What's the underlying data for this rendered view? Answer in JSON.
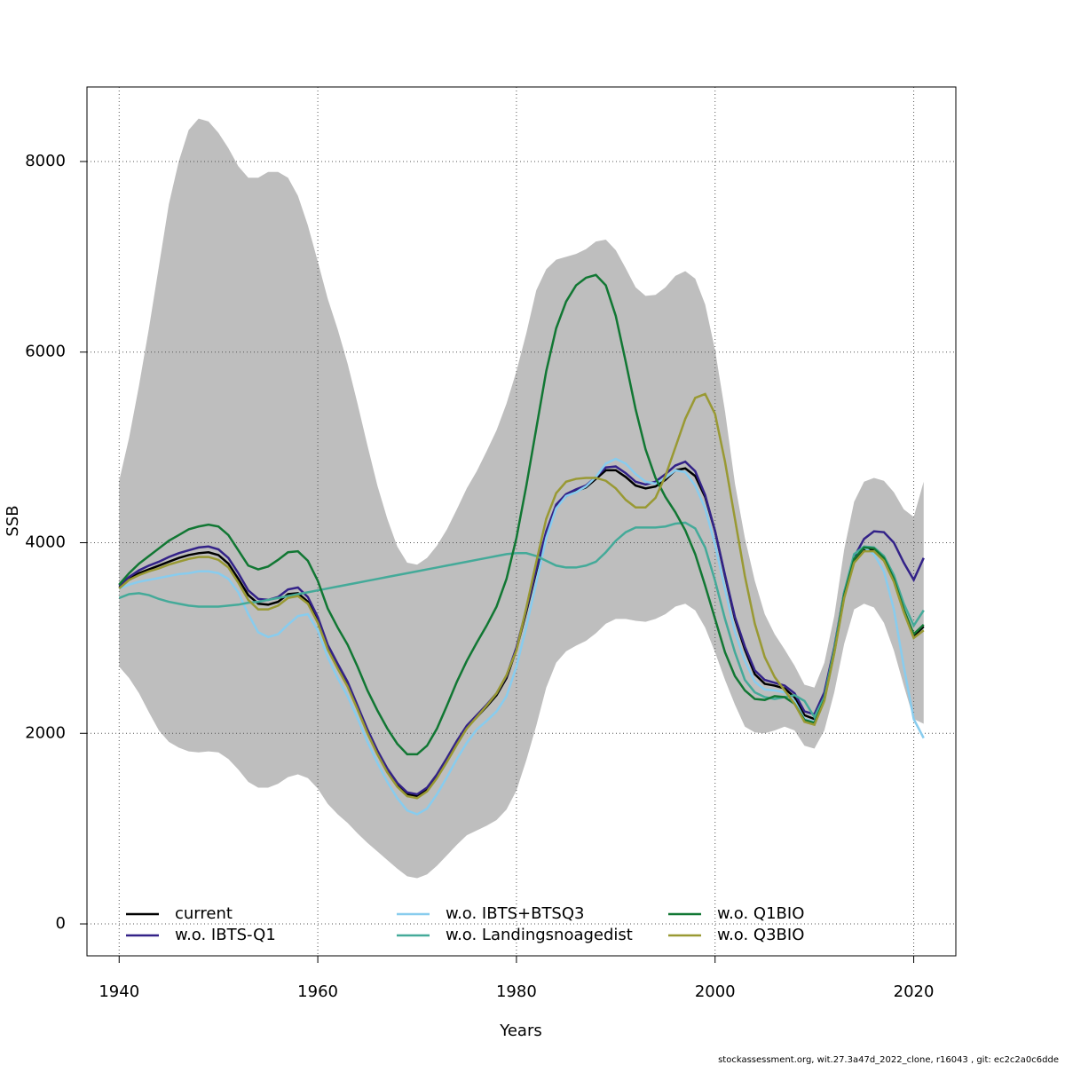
{
  "chart_data": {
    "type": "line",
    "xlabel": "Years",
    "ylabel": "SSB",
    "footer": "stockassessment.org, wit.27.3a47d_2022_clone, r16043 , git: ec2c2a0c6dde",
    "x": [
      1940,
      1941,
      1942,
      1943,
      1944,
      1945,
      1946,
      1947,
      1948,
      1949,
      1950,
      1951,
      1952,
      1953,
      1954,
      1955,
      1956,
      1957,
      1958,
      1959,
      1960,
      1961,
      1962,
      1963,
      1964,
      1965,
      1966,
      1967,
      1968,
      1969,
      1970,
      1971,
      1972,
      1973,
      1974,
      1975,
      1976,
      1977,
      1978,
      1979,
      1980,
      1981,
      1982,
      1983,
      1984,
      1985,
      1986,
      1987,
      1988,
      1989,
      1990,
      1991,
      1992,
      1993,
      1994,
      1995,
      1996,
      1997,
      1998,
      1999,
      2000,
      2001,
      2002,
      2003,
      2004,
      2005,
      2006,
      2007,
      2008,
      2009,
      2010,
      2011,
      2012,
      2013,
      2014,
      2015,
      2016,
      2017,
      2018,
      2019,
      2020,
      2021
    ],
    "band": {
      "color": "#bebebe",
      "upper": [
        4650,
        5100,
        5650,
        6250,
        6900,
        7550,
        8000,
        8330,
        8450,
        8420,
        8300,
        8140,
        7950,
        7830,
        7830,
        7890,
        7890,
        7830,
        7640,
        7330,
        6950,
        6560,
        6240,
        5880,
        5460,
        5020,
        4600,
        4250,
        3960,
        3790,
        3770,
        3840,
        3970,
        4140,
        4350,
        4570,
        4750,
        4960,
        5180,
        5460,
        5800,
        6200,
        6650,
        6870,
        6970,
        7000,
        7030,
        7080,
        7160,
        7180,
        7070,
        6880,
        6680,
        6590,
        6600,
        6680,
        6800,
        6850,
        6770,
        6500,
        6020,
        5380,
        4620,
        4050,
        3600,
        3250,
        3040,
        2880,
        2710,
        2510,
        2480,
        2740,
        3230,
        3930,
        4430,
        4640,
        4680,
        4650,
        4530,
        4350,
        4270,
        4640
      ],
      "lower": [
        2700,
        2580,
        2420,
        2220,
        2030,
        1910,
        1850,
        1810,
        1800,
        1810,
        1800,
        1730,
        1620,
        1490,
        1430,
        1430,
        1470,
        1540,
        1570,
        1530,
        1420,
        1260,
        1150,
        1060,
        950,
        850,
        760,
        670,
        580,
        500,
        480,
        520,
        610,
        720,
        830,
        930,
        980,
        1030,
        1090,
        1200,
        1400,
        1720,
        2080,
        2480,
        2740,
        2860,
        2920,
        2970,
        3050,
        3150,
        3200,
        3200,
        3180,
        3170,
        3200,
        3250,
        3330,
        3360,
        3290,
        3110,
        2850,
        2560,
        2300,
        2070,
        2010,
        2000,
        2030,
        2070,
        2030,
        1870,
        1840,
        2030,
        2430,
        2940,
        3300,
        3360,
        3320,
        3160,
        2870,
        2500,
        2150,
        2100
      ]
    },
    "series": [
      {
        "name": "current",
        "color": "#000000",
        "values": [
          3530,
          3620,
          3680,
          3720,
          3760,
          3800,
          3840,
          3870,
          3890,
          3900,
          3870,
          3780,
          3620,
          3450,
          3360,
          3350,
          3380,
          3460,
          3470,
          3380,
          3180,
          2900,
          2700,
          2510,
          2270,
          2020,
          1800,
          1610,
          1460,
          1360,
          1340,
          1410,
          1550,
          1720,
          1900,
          2060,
          2170,
          2280,
          2400,
          2580,
          2880,
          3280,
          3700,
          4100,
          4380,
          4490,
          4540,
          4580,
          4670,
          4760,
          4760,
          4690,
          4600,
          4570,
          4590,
          4660,
          4760,
          4780,
          4700,
          4480,
          4120,
          3650,
          3200,
          2880,
          2620,
          2520,
          2500,
          2470,
          2380,
          2190,
          2150,
          2380,
          2850,
          3450,
          3820,
          3930,
          3930,
          3830,
          3610,
          3280,
          3020,
          3120
        ]
      },
      {
        "name": "w.o. IBTS-Q1",
        "color": "#332288",
        "values": [
          3550,
          3640,
          3710,
          3760,
          3800,
          3850,
          3890,
          3920,
          3950,
          3960,
          3930,
          3840,
          3680,
          3500,
          3410,
          3400,
          3430,
          3510,
          3530,
          3430,
          3220,
          2930,
          2730,
          2540,
          2290,
          2040,
          1820,
          1630,
          1480,
          1380,
          1360,
          1430,
          1570,
          1740,
          1920,
          2080,
          2190,
          2300,
          2420,
          2600,
          2900,
          3300,
          3720,
          4120,
          4400,
          4510,
          4560,
          4600,
          4690,
          4790,
          4800,
          4730,
          4640,
          4610,
          4640,
          4720,
          4810,
          4850,
          4750,
          4500,
          4120,
          3660,
          3220,
          2910,
          2660,
          2560,
          2530,
          2500,
          2420,
          2230,
          2200,
          2430,
          2900,
          3480,
          3850,
          4040,
          4120,
          4110,
          4000,
          3790,
          3610,
          3840
        ]
      },
      {
        "name": "w.o. IBTS+BTSQ3",
        "color": "#88ccee",
        "values": [
          3520,
          3560,
          3590,
          3610,
          3630,
          3650,
          3670,
          3680,
          3700,
          3700,
          3680,
          3620,
          3480,
          3250,
          3060,
          3010,
          3040,
          3140,
          3230,
          3250,
          3080,
          2800,
          2580,
          2390,
          2160,
          1910,
          1690,
          1490,
          1320,
          1190,
          1150,
          1210,
          1360,
          1540,
          1730,
          1900,
          2040,
          2130,
          2230,
          2390,
          2700,
          3120,
          3580,
          4050,
          4360,
          4490,
          4530,
          4590,
          4690,
          4830,
          4880,
          4830,
          4720,
          4640,
          4620,
          4680,
          4760,
          4740,
          4600,
          4360,
          3980,
          3510,
          3060,
          2760,
          2540,
          2460,
          2450,
          2430,
          2340,
          2150,
          2120,
          2360,
          2840,
          3450,
          3880,
          3950,
          3880,
          3700,
          3300,
          2700,
          2150,
          1950
        ]
      },
      {
        "name": "w.o. Landingsnoagedist",
        "color": "#44aa99",
        "values": [
          3420,
          3460,
          3470,
          3450,
          3410,
          3380,
          3360,
          3340,
          3330,
          3330,
          3330,
          3340,
          3350,
          3370,
          3380,
          3400,
          3420,
          3440,
          3460,
          3480,
          3500,
          3520,
          3540,
          3560,
          3580,
          3600,
          3620,
          3640,
          3660,
          3680,
          3700,
          3720,
          3740,
          3760,
          3780,
          3800,
          3820,
          3840,
          3860,
          3880,
          3890,
          3890,
          3860,
          3810,
          3760,
          3740,
          3740,
          3760,
          3800,
          3900,
          4020,
          4110,
          4160,
          4160,
          4160,
          4170,
          4200,
          4210,
          4150,
          3950,
          3600,
          3200,
          2850,
          2560,
          2430,
          2380,
          2360,
          2380,
          2400,
          2340,
          2170,
          2380,
          2880,
          3480,
          3880,
          3960,
          3950,
          3860,
          3660,
          3360,
          3130,
          3290
        ]
      },
      {
        "name": "w.o. Q1BIO",
        "color": "#117733",
        "values": [
          3560,
          3680,
          3780,
          3860,
          3940,
          4020,
          4080,
          4140,
          4170,
          4190,
          4170,
          4080,
          3920,
          3760,
          3720,
          3750,
          3820,
          3900,
          3910,
          3810,
          3600,
          3310,
          3110,
          2930,
          2700,
          2450,
          2240,
          2050,
          1890,
          1780,
          1780,
          1870,
          2050,
          2290,
          2540,
          2760,
          2950,
          3130,
          3330,
          3620,
          4050,
          4600,
          5200,
          5800,
          6250,
          6530,
          6700,
          6780,
          6810,
          6700,
          6380,
          5900,
          5400,
          4980,
          4680,
          4480,
          4320,
          4130,
          3880,
          3550,
          3200,
          2850,
          2600,
          2450,
          2360,
          2350,
          2390,
          2380,
          2310,
          2140,
          2110,
          2350,
          2850,
          3450,
          3830,
          3950,
          3940,
          3840,
          3620,
          3300,
          3040,
          3140
        ]
      },
      {
        "name": "w.o. Q3BIO",
        "color": "#999933",
        "values": [
          3520,
          3610,
          3660,
          3700,
          3730,
          3770,
          3800,
          3830,
          3850,
          3850,
          3820,
          3740,
          3580,
          3400,
          3300,
          3300,
          3340,
          3420,
          3440,
          3360,
          3160,
          2880,
          2680,
          2490,
          2250,
          2000,
          1780,
          1590,
          1440,
          1340,
          1320,
          1390,
          1530,
          1700,
          1880,
          2050,
          2170,
          2290,
          2420,
          2610,
          2870,
          3320,
          3800,
          4250,
          4520,
          4640,
          4670,
          4680,
          4680,
          4650,
          4570,
          4450,
          4370,
          4370,
          4470,
          4700,
          5000,
          5300,
          5520,
          5560,
          5350,
          4850,
          4250,
          3650,
          3150,
          2800,
          2590,
          2450,
          2310,
          2120,
          2090,
          2340,
          2840,
          3420,
          3790,
          3910,
          3910,
          3810,
          3590,
          3270,
          3000,
          3080
        ]
      }
    ],
    "xlim": [
      1936.76,
      2024.24
    ],
    "ylim": [
      -335,
      8782
    ],
    "xticks": [
      1940,
      1960,
      1980,
      2000,
      2020
    ],
    "yticks": [
      0,
      2000,
      4000,
      6000,
      8000
    ],
    "grid": true,
    "legend": "bottom"
  }
}
